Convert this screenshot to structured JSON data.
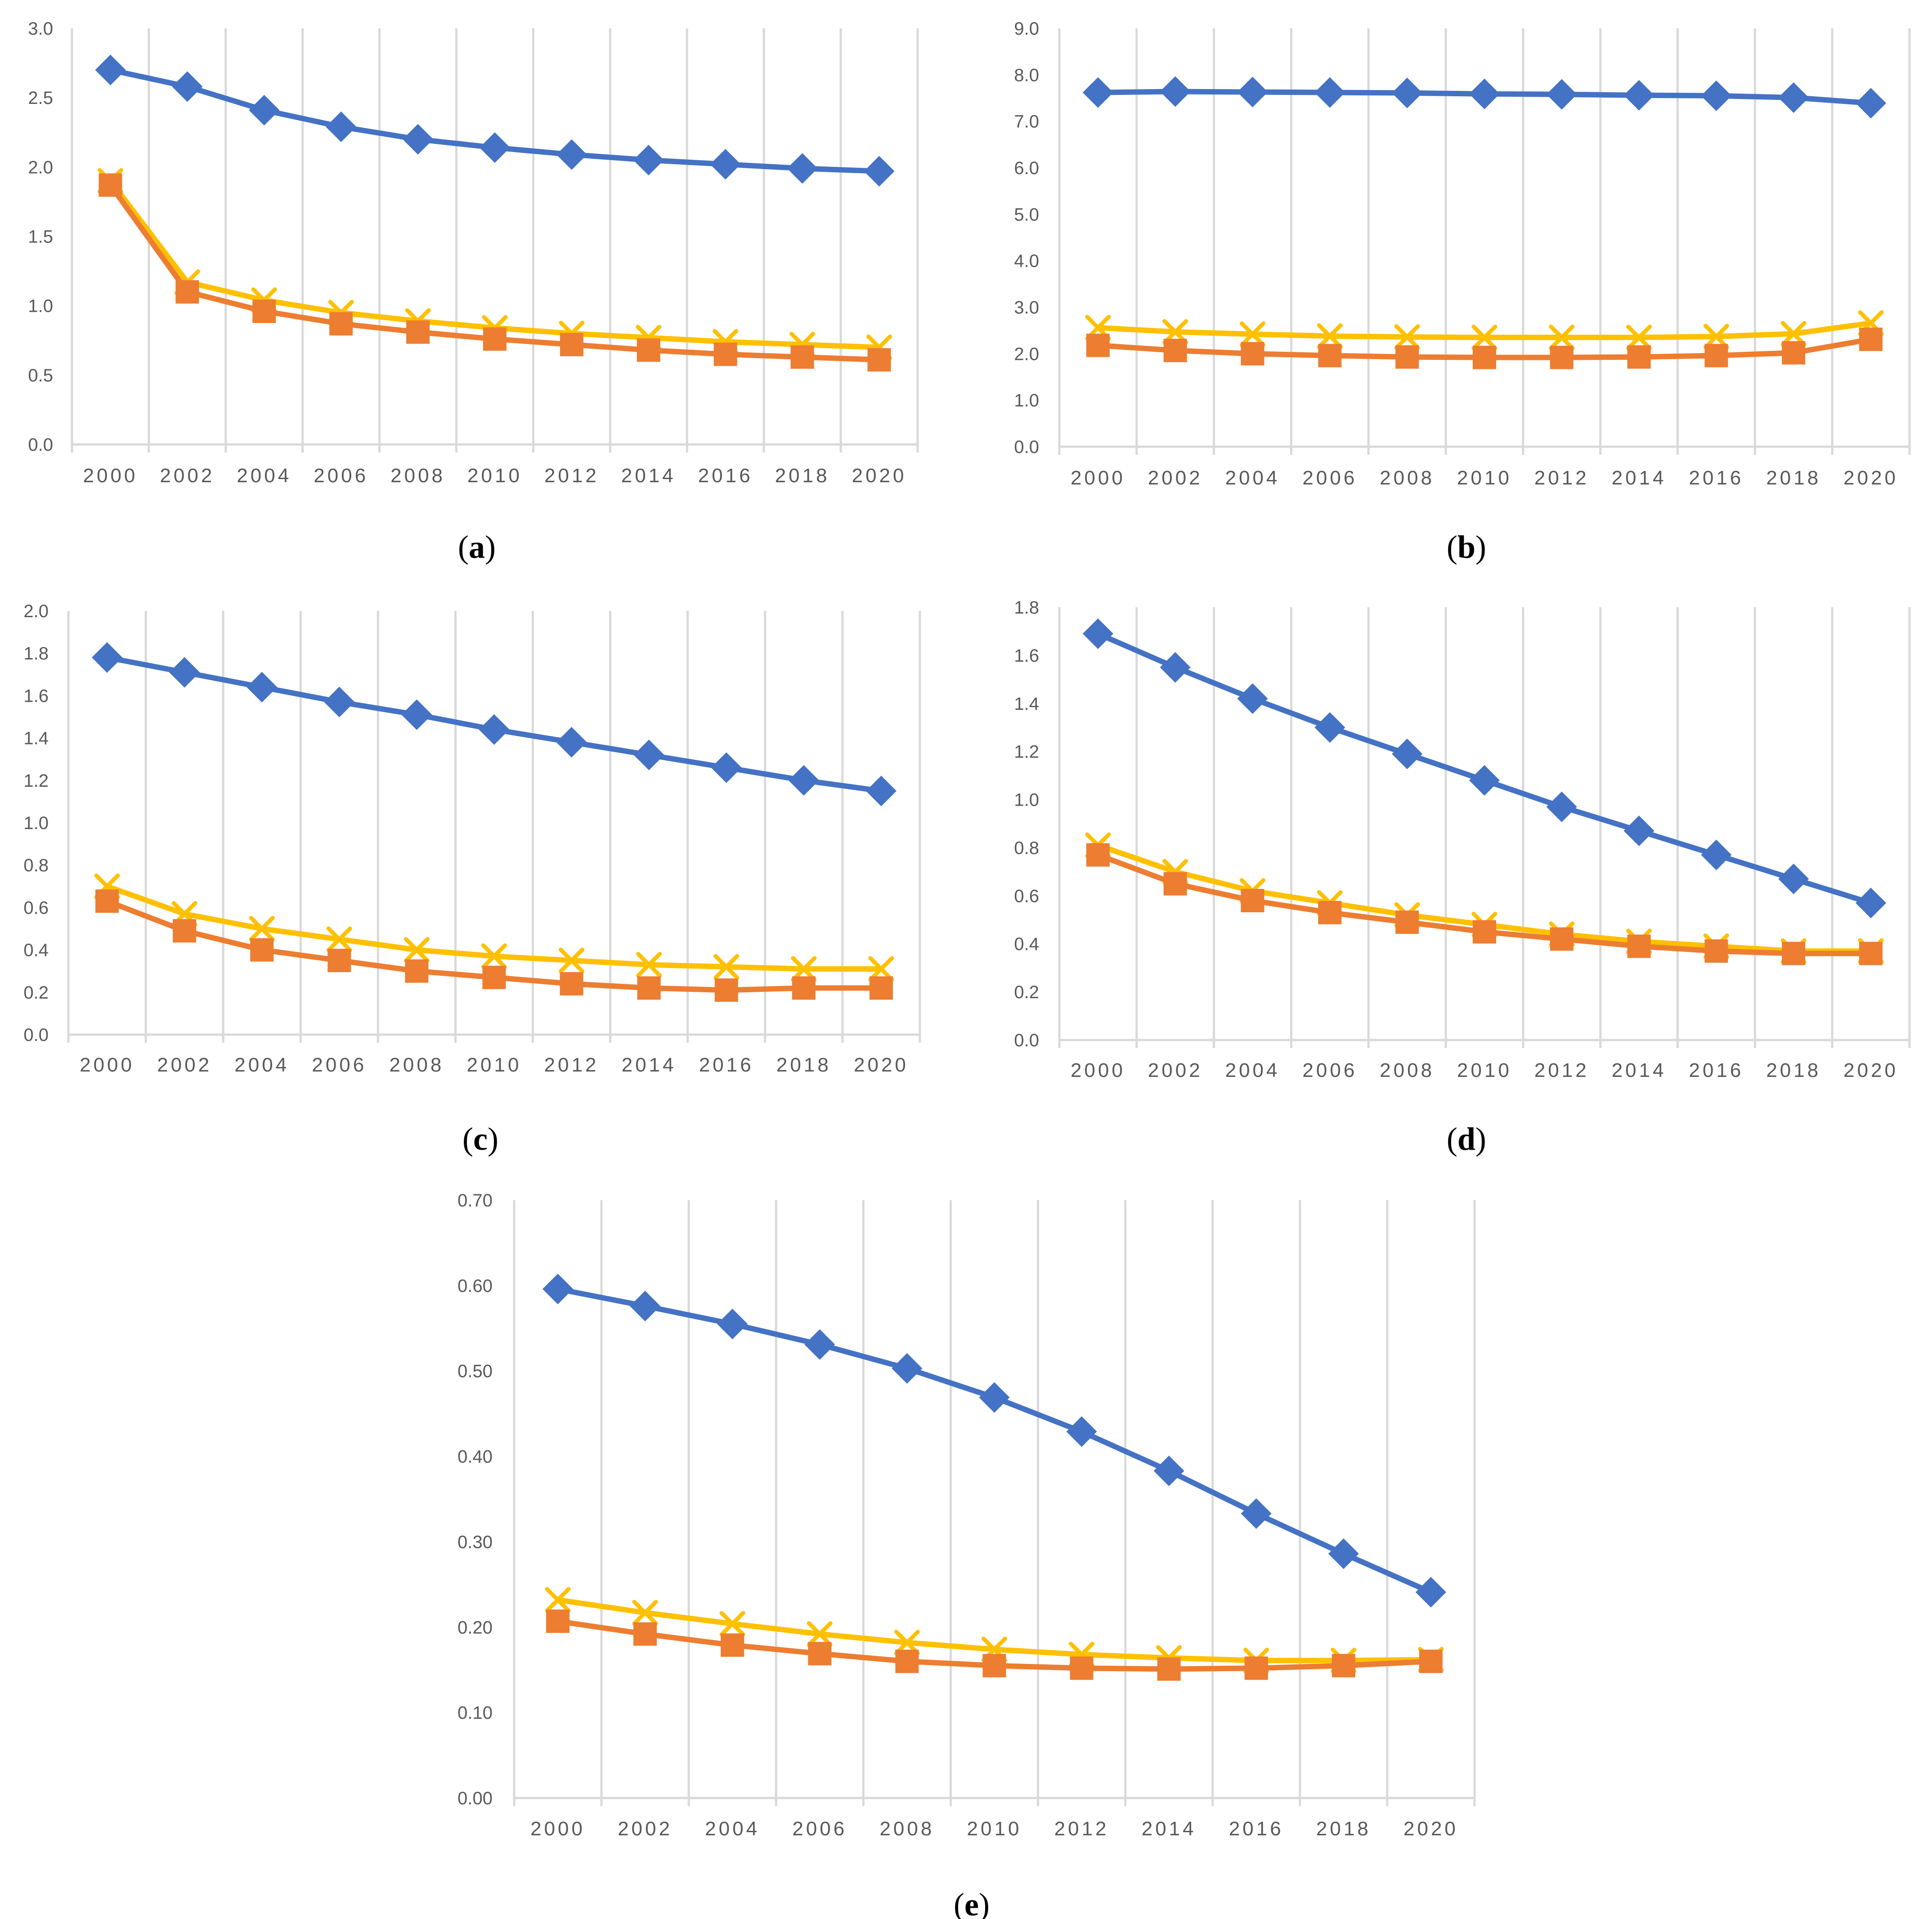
{
  "colors": {
    "series_a": "#4472C4",
    "series_b": "#ED7D31",
    "series_c": "#FFC000",
    "grid": "#D9D9D9",
    "tick_text": "#595959"
  },
  "chart_data": [
    {
      "type": "line",
      "caption_letter": "a",
      "x": [
        "2000",
        "2002",
        "2004",
        "2006",
        "2008",
        "2010",
        "2012",
        "2014",
        "2016",
        "2018",
        "2020"
      ],
      "y_ticks": [
        "0.0",
        "0.5",
        "1.0",
        "1.5",
        "2.0",
        "2.5",
        "3.0"
      ],
      "ylim": [
        0,
        3.0
      ],
      "series": [
        {
          "name": "diamond-series",
          "marker": "diamond",
          "color": "#4472C4",
          "values": [
            2.7,
            2.58,
            2.41,
            2.29,
            2.2,
            2.14,
            2.09,
            2.05,
            2.02,
            1.99,
            1.97
          ]
        },
        {
          "name": "square-series",
          "marker": "square",
          "color": "#ED7D31",
          "values": [
            1.87,
            1.1,
            0.96,
            0.87,
            0.81,
            0.76,
            0.72,
            0.68,
            0.65,
            0.63,
            0.61
          ]
        },
        {
          "name": "x-series",
          "marker": "x",
          "color": "#FFC000",
          "values": [
            1.9,
            1.17,
            1.04,
            0.95,
            0.89,
            0.84,
            0.8,
            0.77,
            0.74,
            0.72,
            0.7
          ]
        }
      ]
    },
    {
      "type": "line",
      "caption_letter": "b",
      "x": [
        "2000",
        "2002",
        "2004",
        "2006",
        "2008",
        "2010",
        "2012",
        "2014",
        "2016",
        "2018",
        "2020"
      ],
      "y_ticks": [
        "0.0",
        "1.0",
        "2.0",
        "3.0",
        "4.0",
        "5.0",
        "6.0",
        "7.0",
        "8.0",
        "9.0"
      ],
      "ylim": [
        0,
        9.0
      ],
      "series": [
        {
          "name": "diamond-series",
          "marker": "diamond",
          "color": "#4472C4",
          "values": [
            7.62,
            7.64,
            7.63,
            7.62,
            7.61,
            7.59,
            7.58,
            7.56,
            7.55,
            7.51,
            7.39
          ]
        },
        {
          "name": "square-series",
          "marker": "square",
          "color": "#ED7D31",
          "values": [
            2.18,
            2.07,
            2.0,
            1.96,
            1.93,
            1.92,
            1.92,
            1.93,
            1.96,
            2.02,
            2.31
          ]
        },
        {
          "name": "x-series",
          "marker": "x",
          "color": "#FFC000",
          "values": [
            2.56,
            2.47,
            2.42,
            2.38,
            2.36,
            2.35,
            2.35,
            2.35,
            2.37,
            2.43,
            2.66
          ]
        }
      ]
    },
    {
      "type": "line",
      "caption_letter": "c",
      "x": [
        "2000",
        "2002",
        "2004",
        "2006",
        "2008",
        "2010",
        "2012",
        "2014",
        "2016",
        "2018",
        "2020"
      ],
      "y_ticks": [
        "0.0",
        "0.2",
        "0.4",
        "0.6",
        "0.8",
        "1.0",
        "1.2",
        "1.4",
        "1.6",
        "1.8",
        "2.0"
      ],
      "ylim": [
        0,
        2.0
      ],
      "series": [
        {
          "name": "diamond-series",
          "marker": "diamond",
          "color": "#4472C4",
          "values": [
            1.78,
            1.71,
            1.64,
            1.57,
            1.51,
            1.44,
            1.38,
            1.32,
            1.26,
            1.2,
            1.15
          ]
        },
        {
          "name": "square-series",
          "marker": "square",
          "color": "#ED7D31",
          "values": [
            0.63,
            0.49,
            0.4,
            0.35,
            0.3,
            0.27,
            0.24,
            0.22,
            0.21,
            0.22,
            0.22
          ]
        },
        {
          "name": "x-series",
          "marker": "x",
          "color": "#FFC000",
          "values": [
            0.7,
            0.57,
            0.5,
            0.45,
            0.4,
            0.37,
            0.35,
            0.33,
            0.32,
            0.31,
            0.31
          ]
        }
      ]
    },
    {
      "type": "line",
      "caption_letter": "d",
      "x": [
        "2000",
        "2002",
        "2004",
        "2006",
        "2008",
        "2010",
        "2012",
        "2014",
        "2016",
        "2018",
        "2020"
      ],
      "y_ticks": [
        "0.0",
        "0.2",
        "0.4",
        "0.6",
        "0.8",
        "1.0",
        "1.2",
        "1.4",
        "1.6",
        "1.8"
      ],
      "ylim": [
        0,
        1.8
      ],
      "series": [
        {
          "name": "diamond-series",
          "marker": "diamond",
          "color": "#4472C4",
          "values": [
            1.69,
            1.55,
            1.42,
            1.3,
            1.19,
            1.08,
            0.97,
            0.87,
            0.77,
            0.67,
            0.57
          ]
        },
        {
          "name": "square-series",
          "marker": "square",
          "color": "#ED7D31",
          "values": [
            0.77,
            0.65,
            0.58,
            0.53,
            0.49,
            0.45,
            0.42,
            0.39,
            0.37,
            0.36,
            0.36
          ]
        },
        {
          "name": "x-series",
          "marker": "x",
          "color": "#FFC000",
          "values": [
            0.81,
            0.7,
            0.62,
            0.57,
            0.52,
            0.48,
            0.44,
            0.41,
            0.39,
            0.37,
            0.37
          ]
        }
      ]
    },
    {
      "type": "line",
      "caption_letter": "e",
      "x": [
        "2000",
        "2002",
        "2004",
        "2006",
        "2008",
        "2010",
        "2012",
        "2014",
        "2016",
        "2018",
        "2020"
      ],
      "y_ticks": [
        "0.00",
        "0.10",
        "0.20",
        "0.30",
        "0.40",
        "0.50",
        "0.60",
        "0.70"
      ],
      "ylim": [
        0,
        0.7
      ],
      "series": [
        {
          "name": "diamond-series",
          "marker": "diamond",
          "color": "#4472C4",
          "values": [
            0.596,
            0.576,
            0.555,
            0.531,
            0.503,
            0.469,
            0.429,
            0.383,
            0.333,
            0.286,
            0.241
          ]
        },
        {
          "name": "square-series",
          "marker": "square",
          "color": "#ED7D31",
          "values": [
            0.207,
            0.192,
            0.179,
            0.169,
            0.16,
            0.155,
            0.152,
            0.151,
            0.152,
            0.155,
            0.16
          ]
        },
        {
          "name": "x-series",
          "marker": "x",
          "color": "#FFC000",
          "values": [
            0.232,
            0.217,
            0.204,
            0.192,
            0.182,
            0.174,
            0.168,
            0.164,
            0.161,
            0.161,
            0.162
          ]
        }
      ]
    }
  ]
}
